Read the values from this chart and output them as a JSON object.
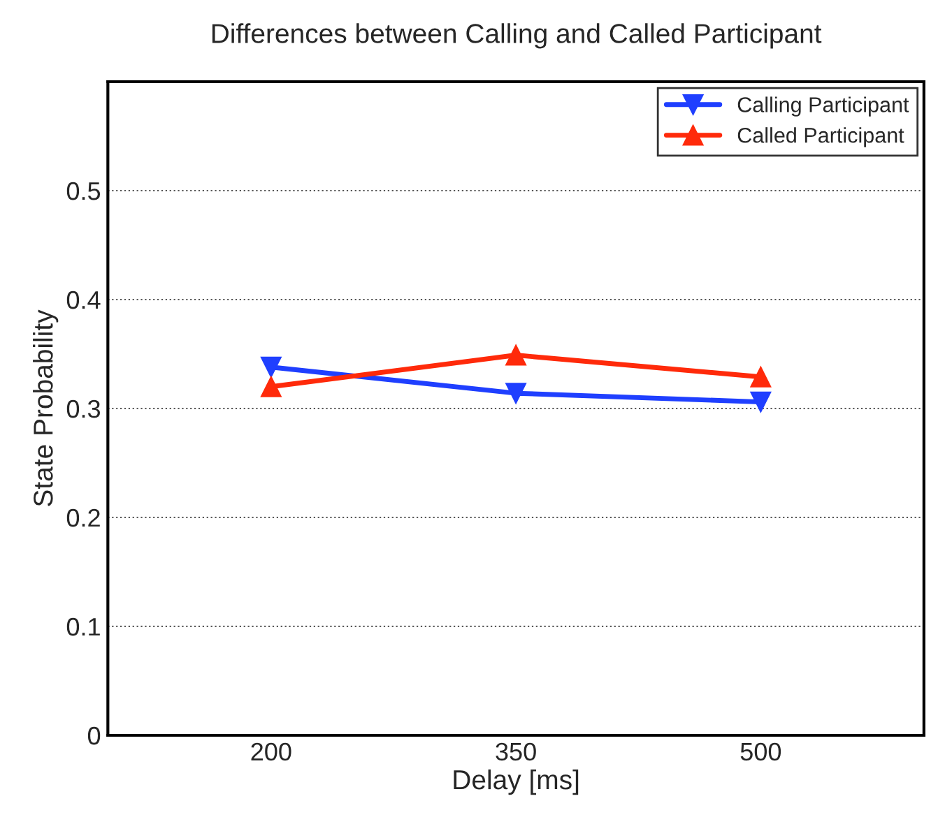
{
  "chart_data": {
    "type": "line",
    "title": "Differences between Calling and Called Participant",
    "xlabel": "Delay [ms]",
    "ylabel": "State Probability",
    "x": [
      200,
      350,
      500
    ],
    "series": [
      {
        "name": "Calling Participant",
        "color": "#1f3fff",
        "marker": "triangle_down",
        "values": [
          0.338,
          0.314,
          0.306
        ]
      },
      {
        "name": "Called Participant",
        "color": "#ff2a0a",
        "marker": "triangle",
        "values": [
          0.32,
          0.349,
          0.329
        ]
      }
    ],
    "xlim": [
      100,
      600
    ],
    "xticks": [
      200,
      350,
      500
    ],
    "ylim": [
      0,
      0.6
    ],
    "yticks": [
      0,
      0.1,
      0.2,
      0.3,
      0.4,
      0.5
    ],
    "grid": "y",
    "legend": "top right",
    "line_style": "solid"
  }
}
